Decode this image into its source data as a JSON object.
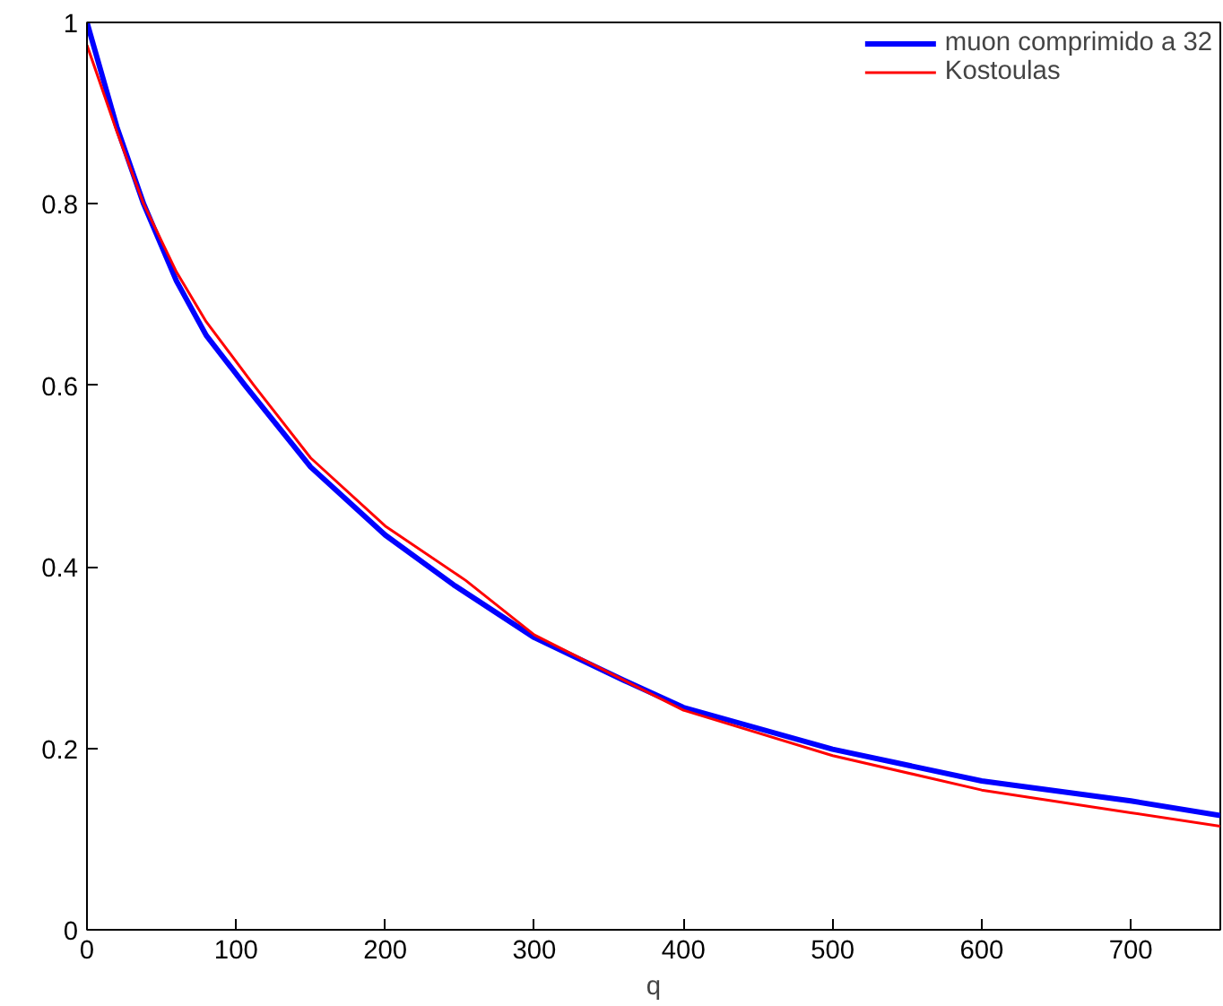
{
  "chart_data": {
    "type": "line",
    "xlabel": "q",
    "xlim": [
      0,
      760
    ],
    "ylim": [
      0,
      1
    ],
    "xticks": [
      0,
      100,
      200,
      300,
      400,
      500,
      600,
      700
    ],
    "yticks": [
      0,
      0.2,
      0.4,
      0.6,
      0.8,
      1
    ],
    "grid": false,
    "legend": "top right",
    "marker": "none",
    "line_style": "solid",
    "series": [
      {
        "name": "muon comprimido a 32",
        "color": "#0000ff",
        "x": [
          0,
          20,
          38,
          60,
          80,
          106,
          150,
          200,
          246,
          300,
          360,
          400,
          500,
          600,
          700,
          760
        ],
        "values": [
          1.0,
          0.885,
          0.8,
          0.715,
          0.655,
          0.6,
          0.51,
          0.435,
          0.38,
          0.322,
          0.275,
          0.245,
          0.199,
          0.164,
          0.142,
          0.126
        ]
      },
      {
        "name": "Kostoulas",
        "color": "#ff0000",
        "x": [
          0,
          20,
          38,
          60,
          80,
          112,
          150,
          200,
          254,
          300,
          360,
          400,
          500,
          600,
          700,
          760
        ],
        "values": [
          0.975,
          0.88,
          0.8,
          0.725,
          0.67,
          0.6,
          0.52,
          0.445,
          0.385,
          0.325,
          0.275,
          0.242,
          0.192,
          0.154,
          0.129,
          0.114
        ]
      }
    ]
  }
}
